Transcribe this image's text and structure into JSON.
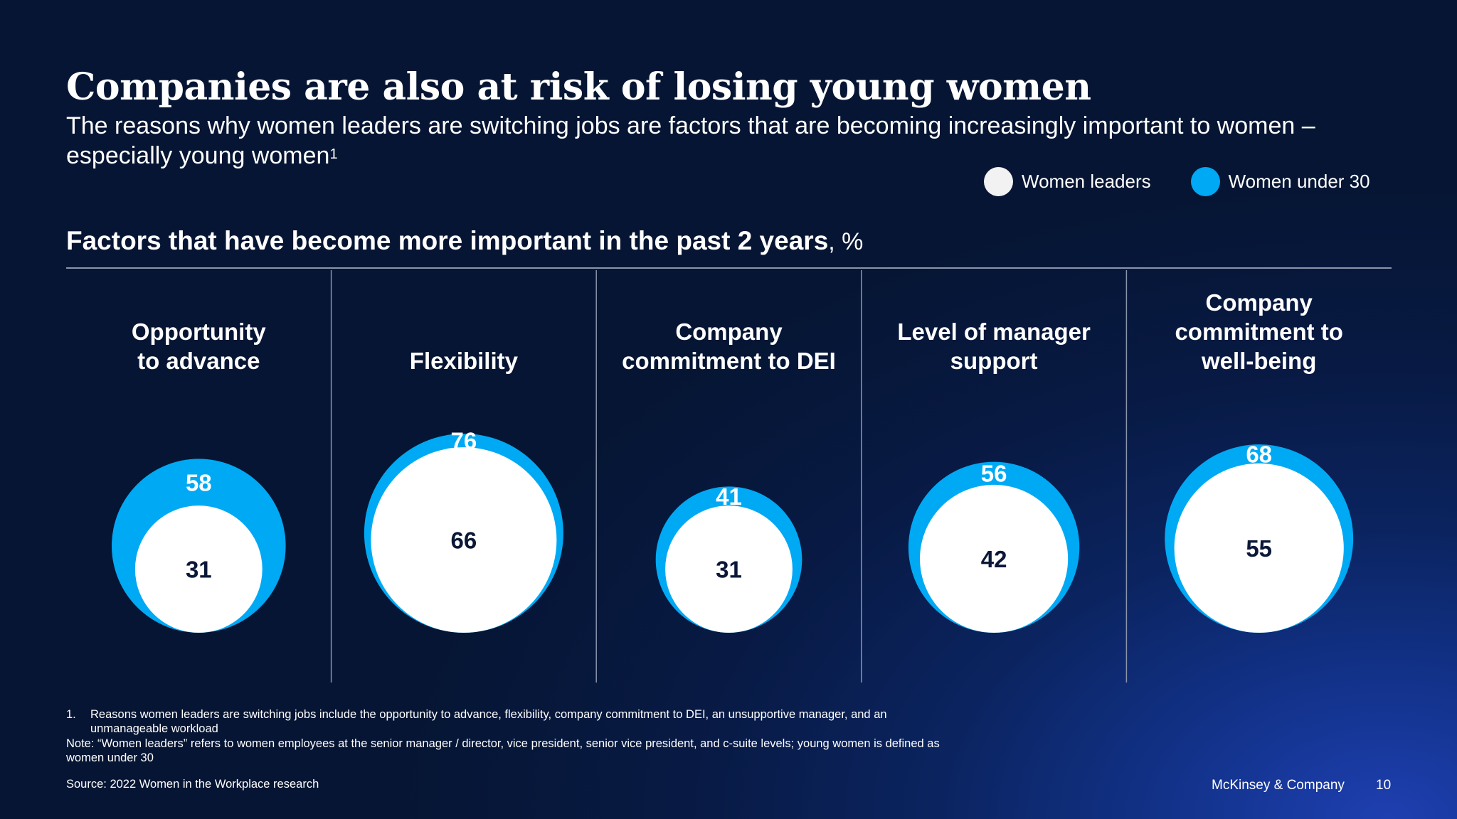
{
  "slide": {
    "title": "Companies are also at risk of losing young women",
    "subtitle": "The reasons why women leaders are switching jobs are factors that are becoming increasingly important to women – especially young women",
    "subtitle_footnote_marker": "1"
  },
  "legend": [
    {
      "label": "Women leaders",
      "color": "#f2f2f2"
    },
    {
      "label": "Women under 30",
      "color": "#00a9f4"
    }
  ],
  "chart_header": {
    "title": "Factors that have become more important in the past 2 years",
    "unit": ", %"
  },
  "chart_data": {
    "type": "bubble",
    "title": "Factors that have become more important in the past 2 years",
    "unit": "%",
    "categories": [
      [
        "Opportunity",
        "to advance"
      ],
      [
        "Flexibility"
      ],
      [
        "Company",
        "commitment to DEI"
      ],
      [
        "Level of manager",
        "support"
      ],
      [
        "Company",
        "commitment to",
        "well-being"
      ]
    ],
    "series": [
      {
        "name": "Women leaders",
        "color": "#ffffff",
        "values": [
          31,
          66,
          31,
          42,
          55
        ]
      },
      {
        "name": "Women under 30",
        "color": "#00a9f4",
        "values": [
          58,
          76,
          41,
          56,
          68
        ]
      }
    ]
  },
  "footnotes": {
    "note1_number": "1.",
    "note1_text": "Reasons women leaders are switching jobs include the opportunity to advance, flexibility, company commitment to DEI, an unsupportive manager, and an unmanageable workload",
    "note": "Note: “Women leaders” refers to women employees at the senior manager / director, vice president, senior vice president, and c-suite levels; young women is defined as women under 30",
    "source": "Source: 2022 Women in the Workplace research"
  },
  "footer": {
    "brand": "McKinsey & Company",
    "page": "10"
  },
  "colors": {
    "women_under_30": "#00a9f4",
    "women_leaders": "#ffffff",
    "dark_text": "#0b1838",
    "divider": "#8a94ab"
  }
}
